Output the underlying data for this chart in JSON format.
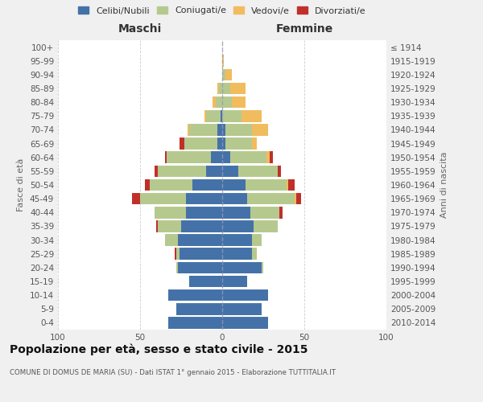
{
  "age_groups": [
    "0-4",
    "5-9",
    "10-14",
    "15-19",
    "20-24",
    "25-29",
    "30-34",
    "35-39",
    "40-44",
    "45-49",
    "50-54",
    "55-59",
    "60-64",
    "65-69",
    "70-74",
    "75-79",
    "80-84",
    "85-89",
    "90-94",
    "95-99",
    "100+"
  ],
  "birth_years": [
    "2010-2014",
    "2005-2009",
    "2000-2004",
    "1995-1999",
    "1990-1994",
    "1985-1989",
    "1980-1984",
    "1975-1979",
    "1970-1974",
    "1965-1969",
    "1960-1964",
    "1955-1959",
    "1950-1954",
    "1945-1949",
    "1940-1944",
    "1935-1939",
    "1930-1934",
    "1925-1929",
    "1920-1924",
    "1915-1919",
    "≤ 1914"
  ],
  "maschi": {
    "celibi": [
      33,
      28,
      33,
      20,
      27,
      26,
      27,
      25,
      22,
      22,
      18,
      10,
      7,
      3,
      3,
      1,
      0,
      0,
      0,
      0,
      0
    ],
    "coniugati": [
      0,
      0,
      0,
      0,
      1,
      2,
      8,
      14,
      19,
      28,
      26,
      29,
      27,
      20,
      17,
      9,
      4,
      2,
      0,
      0,
      0
    ],
    "vedovi": [
      0,
      0,
      0,
      0,
      0,
      0,
      0,
      0,
      0,
      0,
      0,
      0,
      0,
      0,
      1,
      1,
      2,
      1,
      0,
      0,
      0
    ],
    "divorziati": [
      0,
      0,
      0,
      0,
      0,
      1,
      0,
      1,
      0,
      5,
      3,
      2,
      1,
      3,
      0,
      0,
      0,
      0,
      0,
      0,
      0
    ]
  },
  "femmine": {
    "nubili": [
      28,
      24,
      28,
      15,
      24,
      18,
      18,
      19,
      17,
      15,
      14,
      10,
      5,
      2,
      2,
      0,
      0,
      0,
      0,
      0,
      0
    ],
    "coniugate": [
      0,
      0,
      0,
      0,
      1,
      3,
      6,
      15,
      18,
      29,
      25,
      24,
      22,
      16,
      16,
      12,
      6,
      5,
      2,
      0,
      0
    ],
    "vedove": [
      0,
      0,
      0,
      0,
      0,
      0,
      0,
      0,
      0,
      1,
      1,
      0,
      2,
      3,
      10,
      12,
      8,
      9,
      4,
      1,
      0
    ],
    "divorziate": [
      0,
      0,
      0,
      0,
      0,
      0,
      0,
      0,
      2,
      3,
      4,
      2,
      2,
      0,
      0,
      0,
      0,
      0,
      0,
      0,
      0
    ]
  },
  "colors": {
    "celibi_nubili": "#4472a8",
    "coniugati": "#b5c98e",
    "vedovi": "#f0bc5e",
    "divorziati": "#c0302a"
  },
  "xlim": 100,
  "title": "Popolazione per età, sesso e stato civile - 2015",
  "subtitle": "COMUNE DI DOMUS DE MARIA (SU) - Dati ISTAT 1° gennaio 2015 - Elaborazione TUTTITALIA.IT",
  "ylabel_left": "Fasce di età",
  "ylabel_right": "Anni di nascita",
  "xlabel_left": "Maschi",
  "xlabel_right": "Femmine",
  "bg_color": "#f0f0f0",
  "plot_bg_color": "#ffffff",
  "legend_labels": [
    "Celibi/Nubili",
    "Coniugati/e",
    "Vedovi/e",
    "Divorziati/e"
  ]
}
